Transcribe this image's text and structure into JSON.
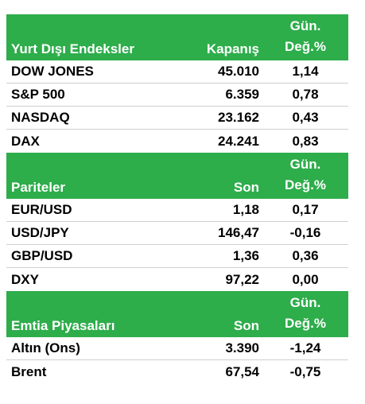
{
  "sections": [
    {
      "title": "Yurt Dışı Endeksler",
      "col2": "Kapanış",
      "col3_line1": "Gün.",
      "col3_line2": "Değ.%",
      "rows": [
        {
          "name": "DOW JONES",
          "value": "45.010",
          "change": "1,14"
        },
        {
          "name": "S&P 500",
          "value": "6.359",
          "change": "0,78"
        },
        {
          "name": "NASDAQ",
          "value": "23.162",
          "change": "0,43"
        },
        {
          "name": "DAX",
          "value": "24.241",
          "change": "0,83"
        }
      ]
    },
    {
      "title": "Pariteler",
      "col2": "Son",
      "col3_line1": "Gün.",
      "col3_line2": "Değ.%",
      "rows": [
        {
          "name": "EUR/USD",
          "value": "1,18",
          "change": "0,17"
        },
        {
          "name": "USD/JPY",
          "value": "146,47",
          "change": "-0,16"
        },
        {
          "name": "GBP/USD",
          "value": "1,36",
          "change": "0,36"
        },
        {
          "name": "DXY",
          "value": "97,22",
          "change": "0,00"
        }
      ]
    },
    {
      "title": "Emtia Piyasaları",
      "col2": "Son",
      "col3_line1": "Gün.",
      "col3_line2": "Değ.%",
      "rows": [
        {
          "name": "Altın (Ons)",
          "value": "3.390",
          "change": "-1,24"
        },
        {
          "name": "Brent",
          "value": "67,54",
          "change": "-0,75"
        }
      ]
    }
  ],
  "colors": {
    "header_bg": "#2ead4b",
    "header_text": "#ffffff",
    "row_text": "#000000"
  }
}
